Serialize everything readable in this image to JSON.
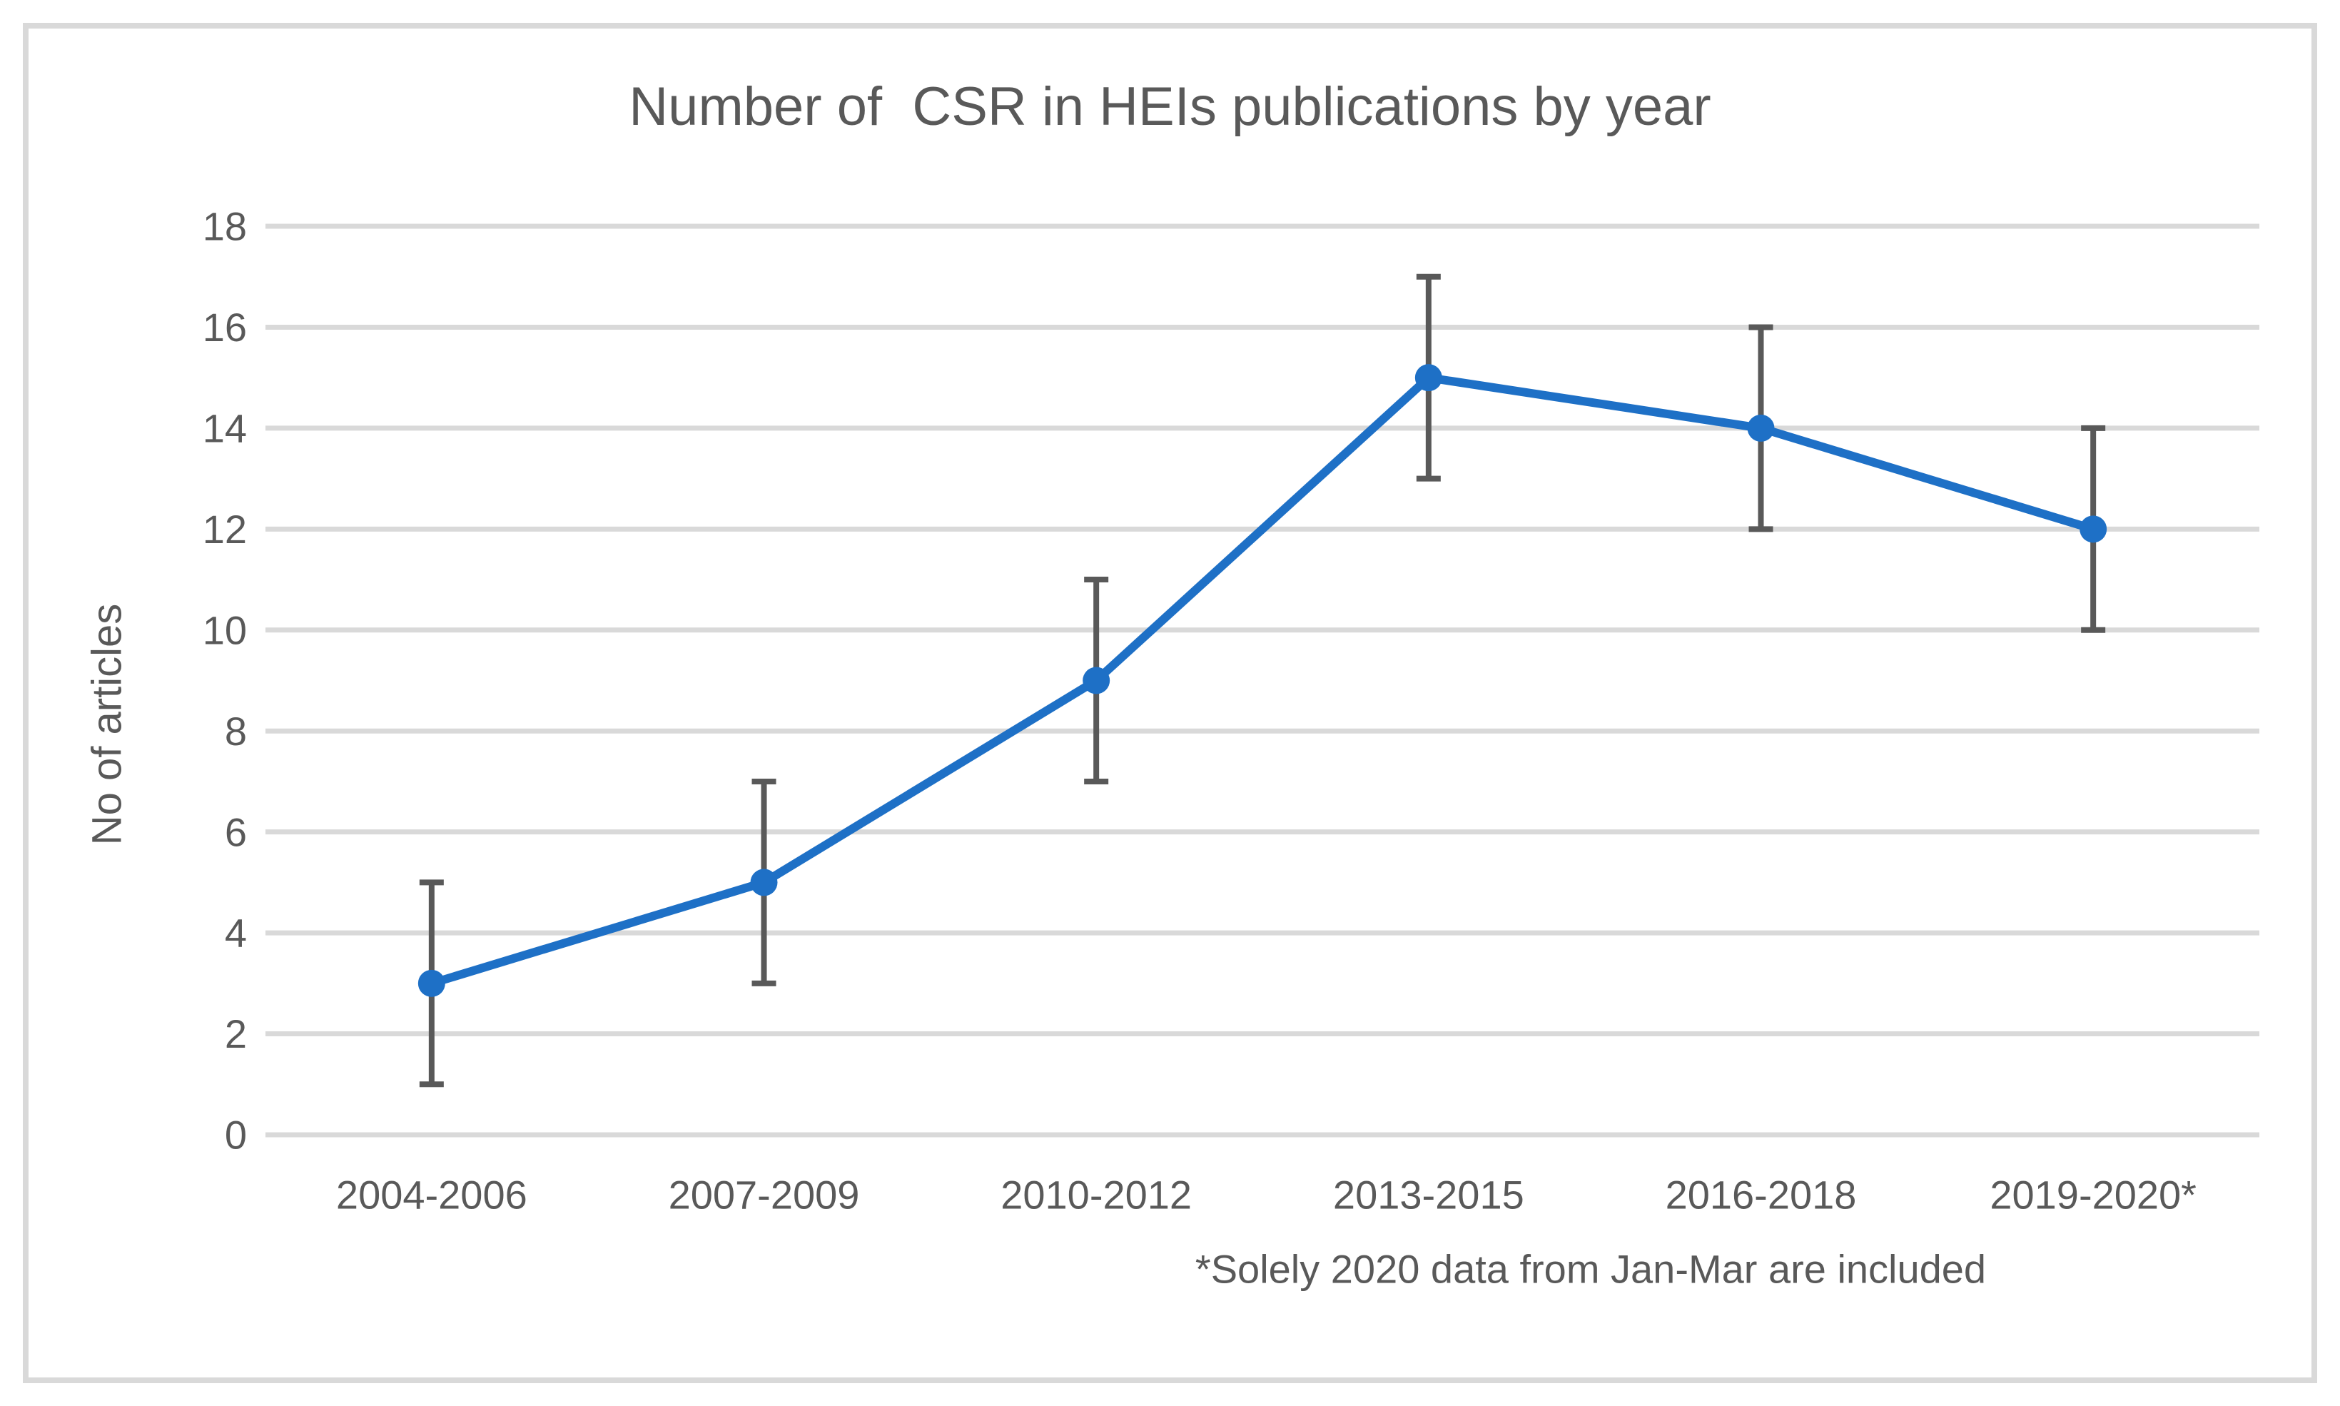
{
  "frame": {
    "border_color": "#d9d9d9",
    "background": "#ffffff"
  },
  "chart_data": {
    "type": "line",
    "title": "Number of  CSR in HEIs publications by year",
    "ylabel": "No of articles",
    "xlabel": "",
    "footnote": "*Solely 2020 data from Jan-Mar are included",
    "categories": [
      "2004-2006",
      "2007-2009",
      "2010-2012",
      "2013-2015",
      "2016-2018",
      "2019-2020*"
    ],
    "series": [
      {
        "name": "No of articles",
        "values": [
          3,
          5,
          9,
          15,
          14,
          12
        ],
        "error_plus": [
          2,
          2,
          2,
          2,
          2,
          2
        ],
        "error_minus": [
          2,
          2,
          2,
          2,
          2,
          2
        ]
      }
    ],
    "ylim": [
      0,
      18
    ],
    "yticks": [
      0,
      2,
      4,
      6,
      8,
      10,
      12,
      14,
      16,
      18
    ],
    "grid": "horizontal",
    "legend": "none",
    "marker": "circle",
    "colors": {
      "line": "#1e70c6",
      "marker": "#1e70c6",
      "error_bar": "#595959",
      "gridline": "#d9d9d9",
      "text": "#595959"
    }
  }
}
